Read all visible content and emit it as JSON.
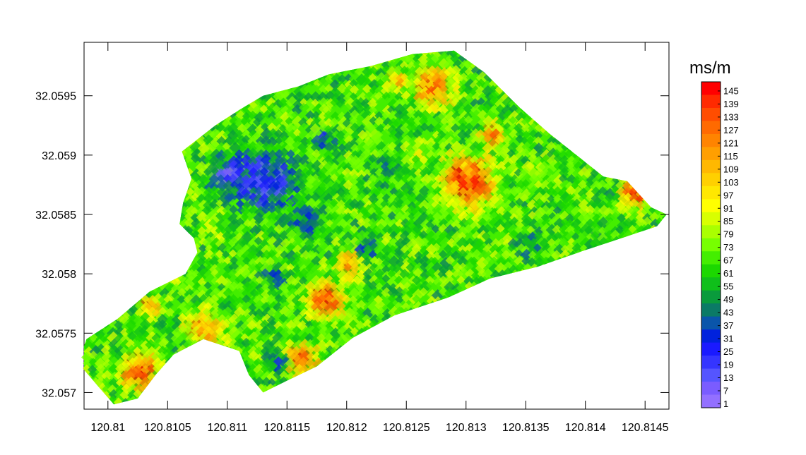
{
  "chart_data": {
    "type": "heatmap",
    "title": "",
    "xlabel": "",
    "ylabel": "",
    "xlim": [
      120.8098,
      120.8147
    ],
    "ylim": [
      32.05686,
      32.05995
    ],
    "x_ticks": [
      120.81,
      120.8105,
      120.811,
      120.8115,
      120.812,
      120.8125,
      120.813,
      120.8135,
      120.814,
      120.8145
    ],
    "x_tick_labels": [
      "120.81",
      "120.8105",
      "120.811",
      "120.8115",
      "120.812",
      "120.8125",
      "120.813",
      "120.8135",
      "120.814",
      "120.8145"
    ],
    "y_ticks": [
      32.0595,
      32.059,
      32.0585,
      32.058,
      32.0575,
      32.057
    ],
    "y_tick_labels": [
      "32.0595",
      "32.059",
      "32.0585",
      "32.058",
      "32.0575",
      "32.057"
    ],
    "colorbar": {
      "unit": "ms/m",
      "values": [
        145,
        139,
        133,
        127,
        121,
        115,
        109,
        103,
        97,
        91,
        85,
        79,
        73,
        67,
        61,
        55,
        49,
        43,
        37,
        31,
        25,
        19,
        13,
        7,
        1
      ],
      "labels": [
        "145",
        "139",
        "133",
        "127",
        "121",
        "115",
        "109",
        "103",
        "97",
        "91",
        "85",
        "79",
        "73",
        "67",
        "61",
        "55",
        "49",
        "43",
        "37",
        "31",
        "25",
        "19",
        "13",
        "7",
        "1"
      ],
      "colors": [
        "#ff0000",
        "#ff2a00",
        "#ff4d00",
        "#ff6a00",
        "#ff8400",
        "#ff9f00",
        "#ffb800",
        "#ffd000",
        "#ffe800",
        "#ffff00",
        "#d8ff00",
        "#aaff00",
        "#77ff00",
        "#44ee00",
        "#1cd800",
        "#0fbf1a",
        "#0a9b3c",
        "#0b7a66",
        "#0a55aa",
        "#0022dd",
        "#1a1aff",
        "#3535ff",
        "#5555ff",
        "#7a5cff",
        "#9370ff"
      ]
    },
    "boundary": [
      [
        120.80982,
        32.05745
      ],
      [
        120.81008,
        32.05762
      ],
      [
        120.81035,
        32.05785
      ],
      [
        120.81065,
        32.058
      ],
      [
        120.81075,
        32.05818
      ],
      [
        120.81072,
        32.0583
      ],
      [
        120.8106,
        32.05842
      ],
      [
        120.81063,
        32.0586
      ],
      [
        120.8107,
        32.0588
      ],
      [
        120.81062,
        32.05903
      ],
      [
        120.8109,
        32.05925
      ],
      [
        120.8111,
        32.05938
      ],
      [
        120.8113,
        32.0595
      ],
      [
        120.8116,
        32.05958
      ],
      [
        120.81185,
        32.05968
      ],
      [
        120.8122,
        32.05975
      ],
      [
        120.81255,
        32.05985
      ],
      [
        120.8129,
        32.05988
      ],
      [
        120.81315,
        32.0597
      ],
      [
        120.81345,
        32.0594
      ],
      [
        120.8137,
        32.05918
      ],
      [
        120.81395,
        32.05898
      ],
      [
        120.81415,
        32.05882
      ],
      [
        120.81435,
        32.05878
      ],
      [
        120.81455,
        32.05856
      ],
      [
        120.81468,
        32.0585
      ],
      [
        120.8146,
        32.0584
      ],
      [
        120.8143,
        32.0583
      ],
      [
        120.814,
        32.0582
      ],
      [
        120.8136,
        32.05806
      ],
      [
        120.8132,
        32.05796
      ],
      [
        120.81285,
        32.0578
      ],
      [
        120.8124,
        32.05765
      ],
      [
        120.81205,
        32.05746
      ],
      [
        120.81175,
        32.05722
      ],
      [
        120.8115,
        32.0571
      ],
      [
        120.8113,
        32.057
      ],
      [
        120.81118,
        32.05715
      ],
      [
        120.8111,
        32.05735
      ],
      [
        120.8108,
        32.05745
      ],
      [
        120.81055,
        32.05732
      ],
      [
        120.8104,
        32.05715
      ],
      [
        120.81025,
        32.05695
      ],
      [
        120.81005,
        32.0569
      ],
      [
        120.80992,
        32.05705
      ],
      [
        120.80975,
        32.05725
      ]
    ],
    "blobs": [
      {
        "x": 120.81025,
        "y": 32.0572,
        "r": 0.00012,
        "value": 145
      },
      {
        "x": 120.81032,
        "y": 32.05775,
        "r": 6e-05,
        "value": 140
      },
      {
        "x": 120.81078,
        "y": 32.05755,
        "r": 0.00012,
        "value": 125
      },
      {
        "x": 120.8105,
        "y": 32.058,
        "r": 5e-05,
        "value": 90
      },
      {
        "x": 120.8118,
        "y": 32.0578,
        "r": 0.00011,
        "value": 145
      },
      {
        "x": 120.812,
        "y": 32.0581,
        "r": 8e-05,
        "value": 135
      },
      {
        "x": 120.8116,
        "y": 32.0573,
        "r": 0.0001,
        "value": 140
      },
      {
        "x": 120.8127,
        "y": 32.0596,
        "r": 0.00013,
        "value": 135
      },
      {
        "x": 120.8124,
        "y": 32.05965,
        "r": 7e-05,
        "value": 120
      },
      {
        "x": 120.813,
        "y": 32.0588,
        "r": 0.00017,
        "value": 145
      },
      {
        "x": 120.8132,
        "y": 32.0592,
        "r": 7e-05,
        "value": 130
      },
      {
        "x": 120.8144,
        "y": 32.0587,
        "r": 9e-05,
        "value": 145
      },
      {
        "x": 120.8126,
        "y": 32.05905,
        "r": 7e-05,
        "value": 90
      },
      {
        "x": 120.8113,
        "y": 32.0588,
        "r": 0.0002,
        "value": 12
      },
      {
        "x": 120.811,
        "y": 32.05885,
        "r": 0.00012,
        "value": 6
      },
      {
        "x": 120.81165,
        "y": 32.05845,
        "r": 0.0001,
        "value": 28
      },
      {
        "x": 120.81215,
        "y": 32.05825,
        "r": 7e-05,
        "value": 30
      },
      {
        "x": 120.8118,
        "y": 32.05915,
        "r": 8e-05,
        "value": 35
      },
      {
        "x": 120.81135,
        "y": 32.058,
        "r": 8e-05,
        "value": 40
      },
      {
        "x": 120.8123,
        "y": 32.0589,
        "r": 0.0001,
        "value": 50
      },
      {
        "x": 120.81355,
        "y": 32.05825,
        "r": 0.0001,
        "value": 50
      },
      {
        "x": 120.8141,
        "y": 32.0583,
        "r": 7e-05,
        "value": 45
      },
      {
        "x": 120.8114,
        "y": 32.05728,
        "r": 6e-05,
        "value": 30
      },
      {
        "x": 120.8109,
        "y": 32.0584,
        "r": 0.0001,
        "value": 75
      },
      {
        "x": 120.8125,
        "y": 32.058,
        "r": 0.0001,
        "value": 70
      },
      {
        "x": 120.8122,
        "y": 32.05745,
        "r": 8e-05,
        "value": 80
      }
    ],
    "grid": false,
    "legend": "right"
  }
}
